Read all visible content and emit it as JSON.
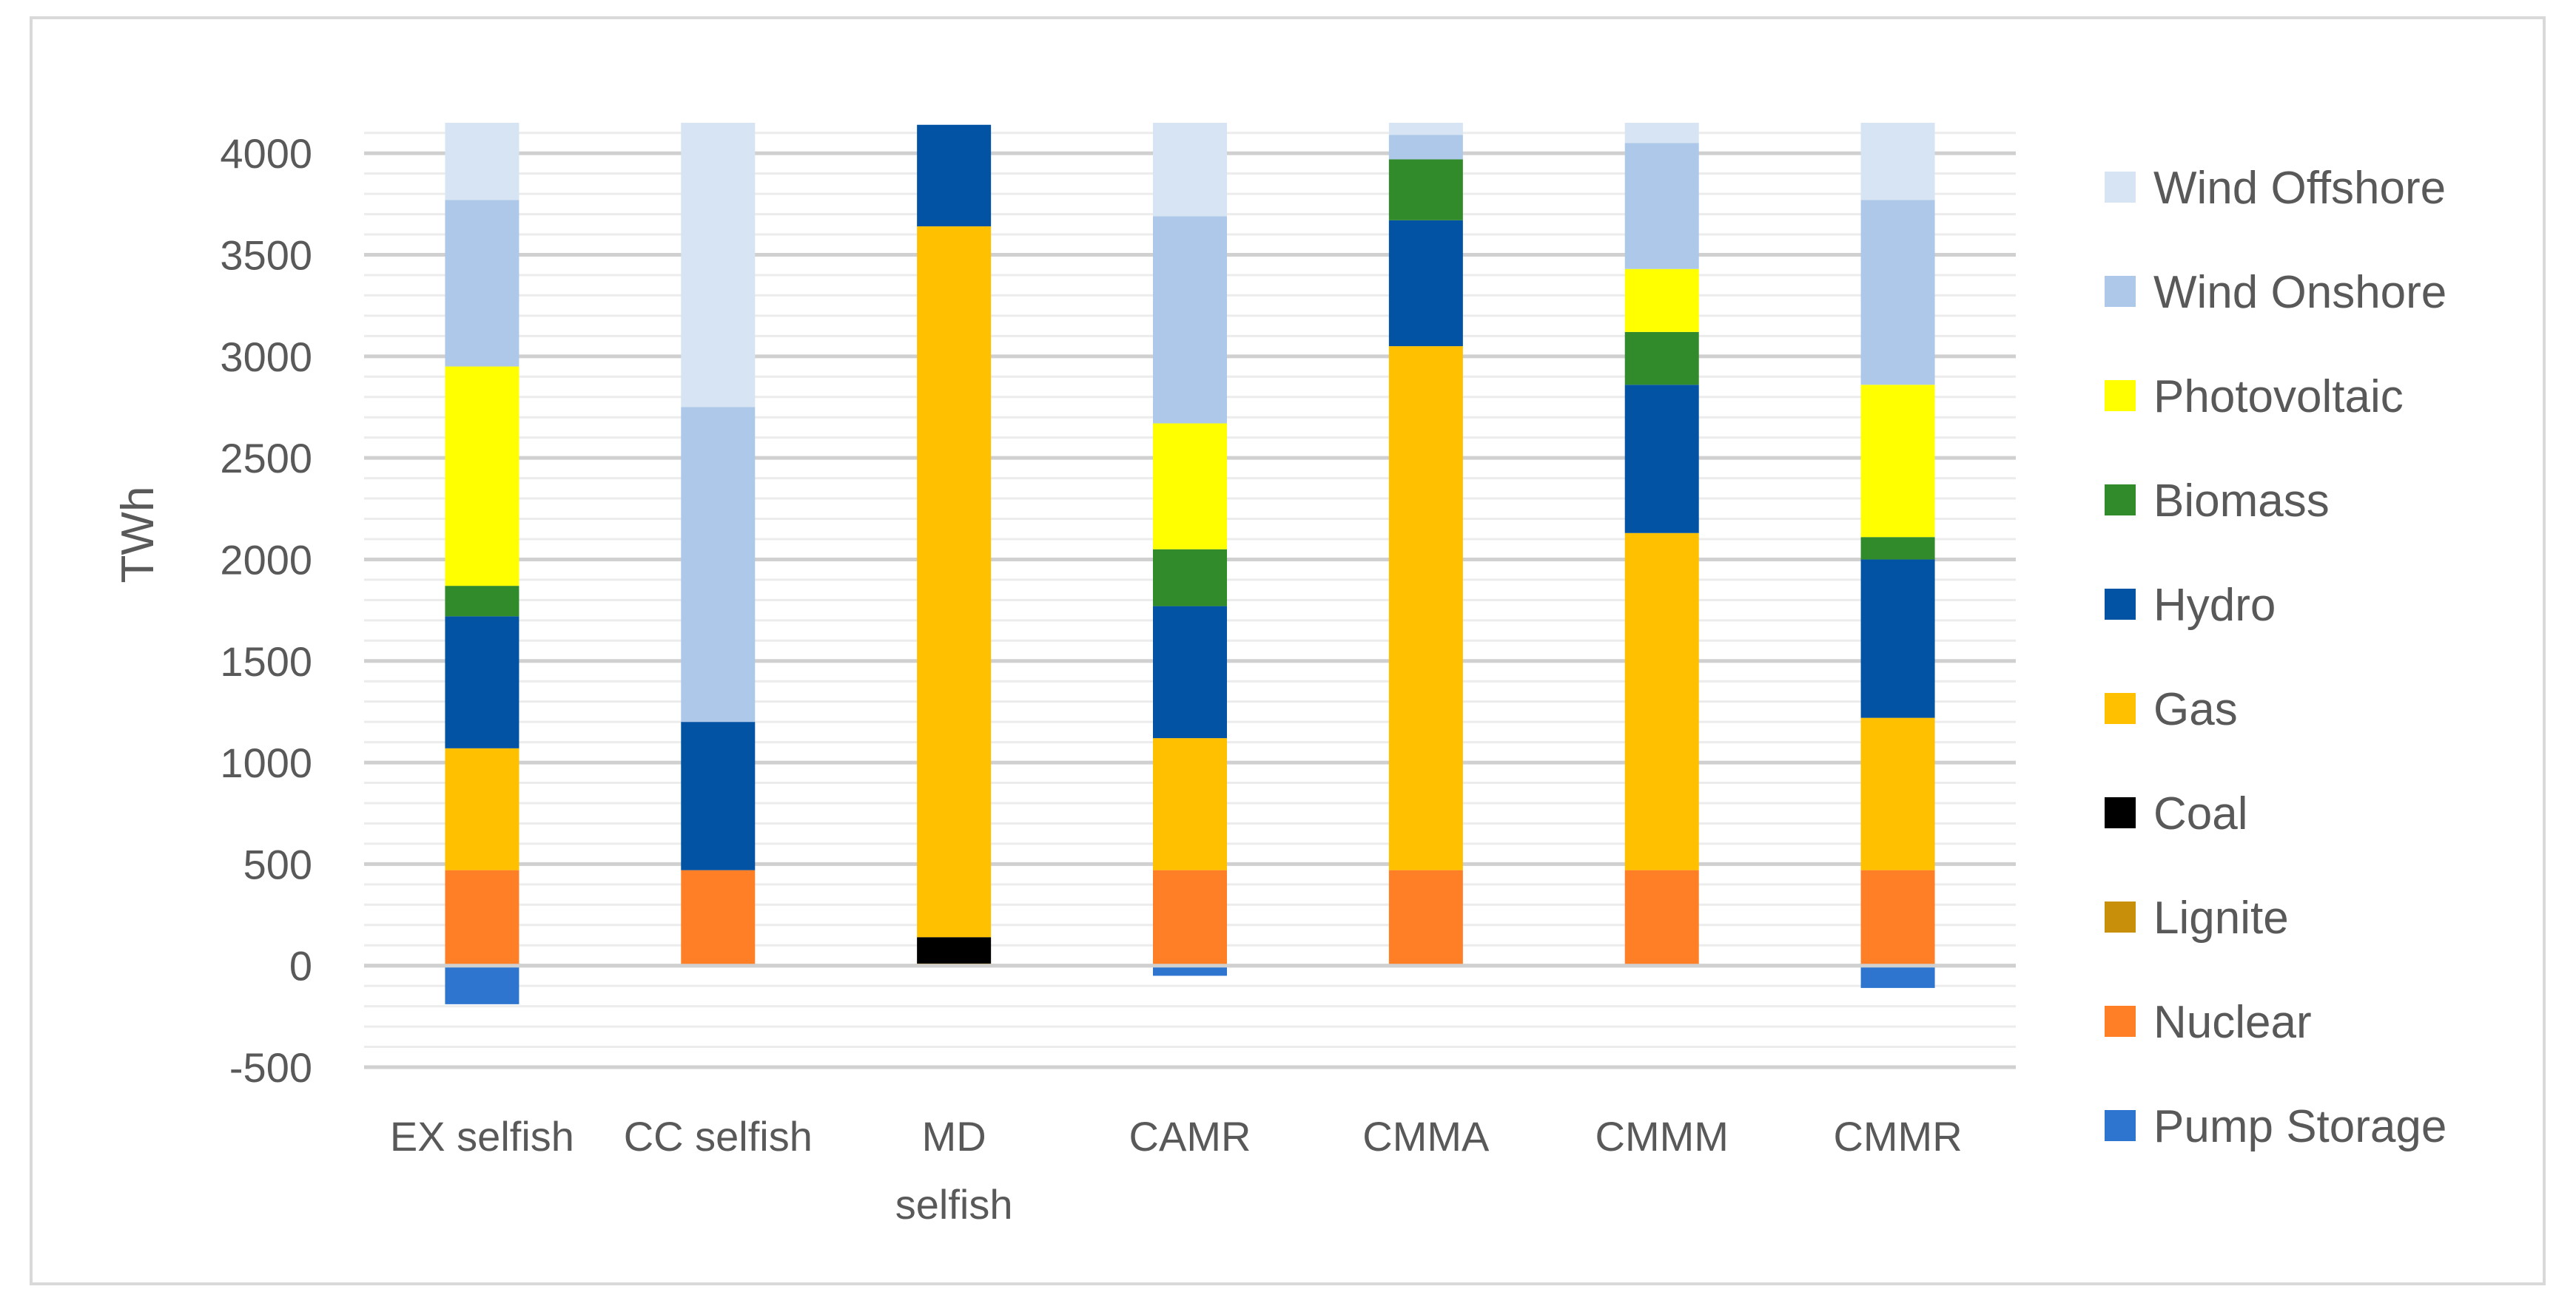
{
  "chart_data": {
    "type": "bar",
    "stacked": true,
    "title": "",
    "xlabel": "",
    "ylabel": "TWh",
    "ylim": [
      -500,
      4150
    ],
    "yticks": [
      -500,
      0,
      500,
      1000,
      1500,
      2000,
      2500,
      3000,
      3500,
      4000
    ],
    "ytick_labels": [
      "-500",
      "0",
      "500",
      "1000",
      "1500",
      "2000",
      "2500",
      "3000",
      "3500",
      "4000"
    ],
    "grid": true,
    "legend_position": "right",
    "categories": [
      [
        "EX selfish"
      ],
      [
        "CC selfish"
      ],
      [
        "MD",
        "selfish"
      ],
      [
        "CAMR"
      ],
      [
        "CMMA"
      ],
      [
        "CMMM"
      ],
      [
        "CMMR"
      ]
    ],
    "series": [
      {
        "name": "Pump Storage",
        "color": "#2e75d0",
        "values": [
          -190,
          0,
          0,
          -50,
          0,
          0,
          -110
        ]
      },
      {
        "name": "Nuclear",
        "color": "#ff7f27",
        "values": [
          470,
          470,
          0,
          470,
          470,
          470,
          470
        ]
      },
      {
        "name": "Lignite",
        "color": "#c8900a",
        "values": [
          0,
          0,
          10,
          0,
          0,
          0,
          0
        ]
      },
      {
        "name": "Coal",
        "color": "#000000",
        "values": [
          0,
          0,
          130,
          0,
          0,
          0,
          0
        ]
      },
      {
        "name": "Gas",
        "color": "#ffc000",
        "values": [
          600,
          0,
          3500,
          650,
          2580,
          1660,
          750
        ]
      },
      {
        "name": "Hydro",
        "color": "#0253a4",
        "values": [
          650,
          730,
          500,
          650,
          620,
          730,
          780
        ]
      },
      {
        "name": "Biomass",
        "color": "#318b2a",
        "values": [
          150,
          0,
          0,
          280,
          300,
          260,
          110
        ]
      },
      {
        "name": "Photovoltaic",
        "color": "#ffff00",
        "values": [
          1080,
          0,
          0,
          620,
          0,
          310,
          750
        ]
      },
      {
        "name": "Wind Onshore",
        "color": "#adc8e8",
        "values": [
          820,
          1550,
          0,
          1020,
          120,
          620,
          910
        ]
      },
      {
        "name": "Wind Offshore",
        "color": "#d6e4f3",
        "values": [
          380,
          1400,
          0,
          460,
          60,
          100,
          380
        ]
      }
    ]
  }
}
